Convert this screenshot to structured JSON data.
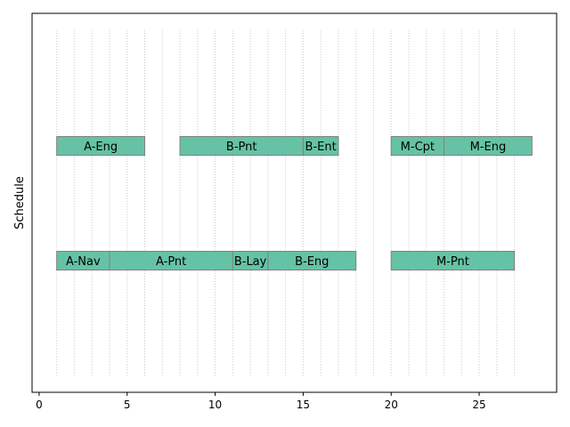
{
  "chart_data": {
    "type": "gantt",
    "title": "",
    "xlabel": "",
    "ylabel": "Schedule",
    "xlim": [
      -0.4,
      29.4
    ],
    "xticks": [
      0,
      5,
      10,
      15,
      20,
      25
    ],
    "grid": "vertical dotted lines at every integer from 1 to 27",
    "bar_color": "#66c2a5",
    "bar_edge_color": "#808080",
    "rows": [
      {
        "tasks": [
          {
            "name": "A-Eng",
            "start": 1,
            "end": 6
          },
          {
            "name": "B-Pnt",
            "start": 8,
            "end": 15
          },
          {
            "name": "B-Ent",
            "start": 15,
            "end": 17
          },
          {
            "name": "M-Cpt",
            "start": 20,
            "end": 23
          },
          {
            "name": "M-Eng",
            "start": 23,
            "end": 28
          }
        ]
      },
      {
        "tasks": [
          {
            "name": "A-Nav",
            "start": 1,
            "end": 4
          },
          {
            "name": "A-Pnt",
            "start": 4,
            "end": 11
          },
          {
            "name": "B-Lay",
            "start": 11,
            "end": 13
          },
          {
            "name": "B-Eng",
            "start": 13,
            "end": 18
          },
          {
            "name": "M-Pnt",
            "start": 20,
            "end": 27
          }
        ]
      }
    ]
  }
}
